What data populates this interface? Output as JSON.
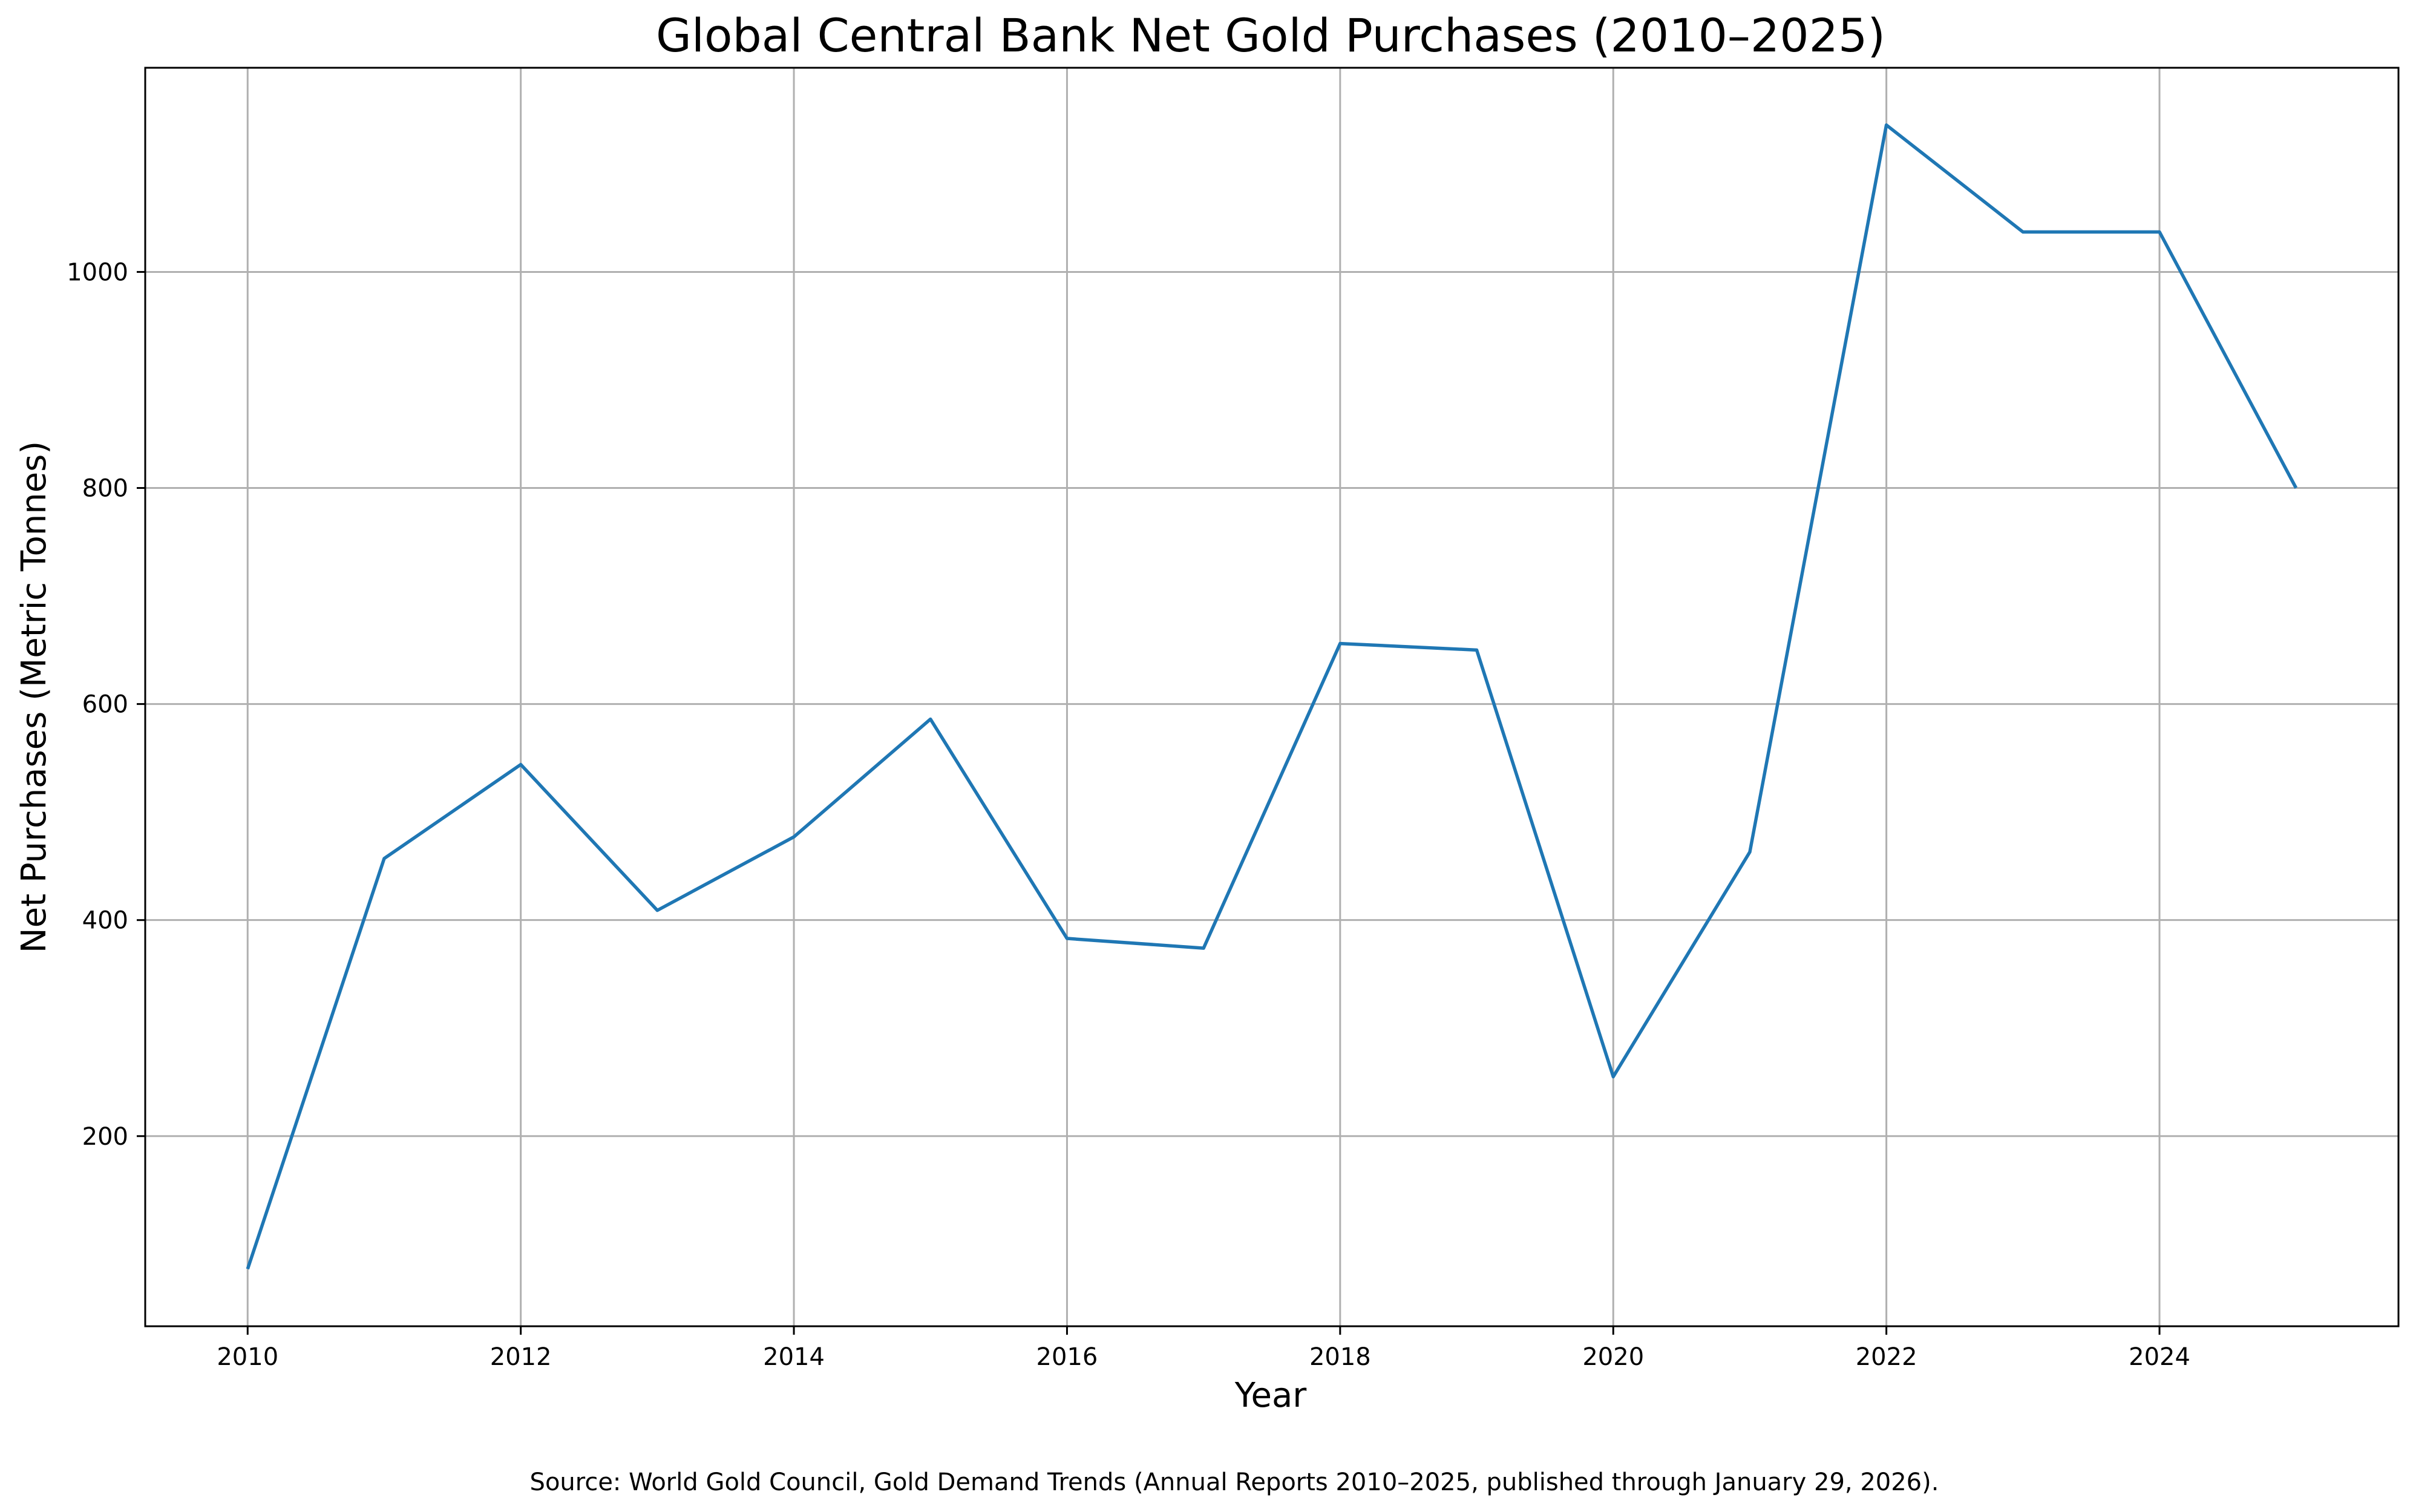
{
  "chart_data": {
    "type": "line",
    "title": "Global Central Bank Net Gold Purchases (2010–2025)",
    "xlabel": "Year",
    "ylabel": "Net Purchases (Metric Tonnes)",
    "source_note": "Source: World Gold Council, Gold Demand Trends (Annual Reports 2010–2025, published through January 29, 2026).",
    "x": [
      2010,
      2011,
      2012,
      2013,
      2014,
      2015,
      2016,
      2017,
      2018,
      2019,
      2020,
      2021,
      2022,
      2023,
      2024,
      2025
    ],
    "series": [
      {
        "values": [
          77,
          457,
          544,
          409,
          477,
          586,
          383,
          374,
          656,
          650,
          255,
          463,
          1136,
          1037,
          1037,
          800
        ],
        "color": "#1f77b4"
      }
    ],
    "xlim": [
      2009.25,
      2025.75
    ],
    "ylim": [
      24,
      1189
    ],
    "xticks": [
      "2010",
      "2012",
      "2014",
      "2016",
      "2018",
      "2020",
      "2022",
      "2024"
    ],
    "yticks": [
      "200",
      "400",
      "600",
      "800",
      "1000"
    ],
    "grid": true,
    "legend": "none"
  }
}
